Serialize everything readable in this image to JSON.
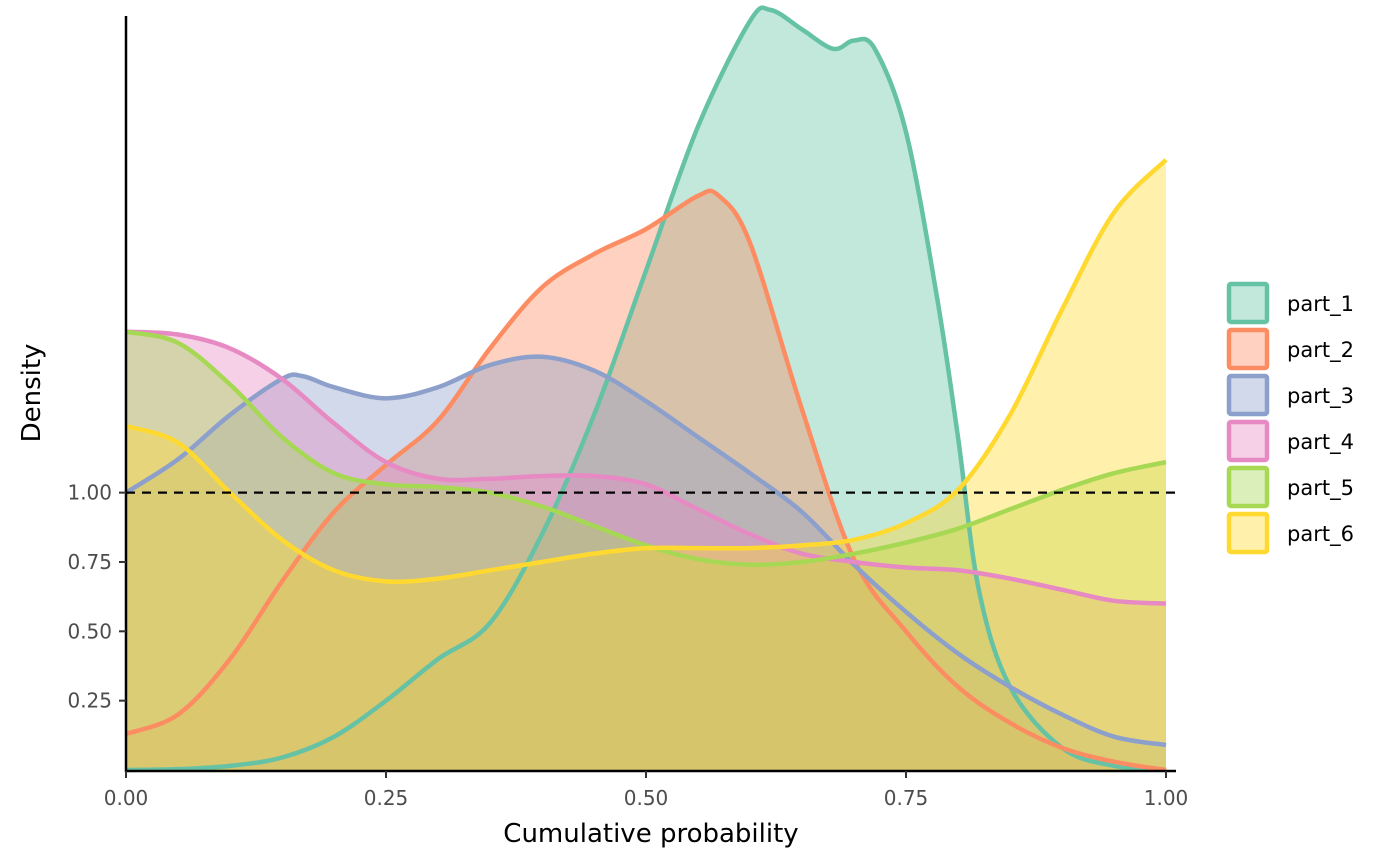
{
  "chart_data": {
    "type": "area",
    "subtype": "density",
    "title": "",
    "xlabel": "Cumulative probability",
    "ylabel": "Density",
    "xlim": [
      0,
      1
    ],
    "ylim": [
      0,
      2.74
    ],
    "x_ticks": [
      "0.00",
      "0.25",
      "0.50",
      "0.75",
      "1.00"
    ],
    "y_ticks": [
      "0.25",
      "0.50",
      "0.75",
      "1.00"
    ],
    "reference_line": {
      "y": 1.0,
      "style": "dashed",
      "color": "#000000"
    },
    "grid": false,
    "legend_position": "right",
    "fill_opacity": 0.4,
    "series": [
      {
        "name": "part_1",
        "color": "#66C2A5",
        "x": [
          0,
          0.05,
          0.1,
          0.15,
          0.2,
          0.25,
          0.3,
          0.35,
          0.4,
          0.45,
          0.5,
          0.55,
          0.6,
          0.62,
          0.65,
          0.68,
          0.7,
          0.72,
          0.75,
          0.78,
          0.8,
          0.82,
          0.85,
          0.9,
          0.95,
          1.0
        ],
        "y": [
          0.0,
          0.003,
          0.015,
          0.045,
          0.12,
          0.25,
          0.4,
          0.53,
          0.85,
          1.28,
          1.8,
          2.32,
          2.7,
          2.74,
          2.67,
          2.6,
          2.63,
          2.6,
          2.3,
          1.7,
          1.2,
          0.65,
          0.3,
          0.08,
          0.015,
          0.0
        ]
      },
      {
        "name": "part_2",
        "color": "#FC8D62",
        "x": [
          0,
          0.05,
          0.1,
          0.15,
          0.2,
          0.25,
          0.3,
          0.35,
          0.4,
          0.45,
          0.5,
          0.55,
          0.57,
          0.6,
          0.65,
          0.7,
          0.75,
          0.8,
          0.85,
          0.9,
          0.95,
          1.0
        ],
        "y": [
          0.13,
          0.2,
          0.4,
          0.68,
          0.93,
          1.1,
          1.26,
          1.52,
          1.74,
          1.86,
          1.95,
          2.07,
          2.07,
          1.9,
          1.3,
          0.76,
          0.5,
          0.3,
          0.17,
          0.08,
          0.03,
          0.0
        ]
      },
      {
        "name": "part_3",
        "color": "#8DA0CB",
        "x": [
          0,
          0.05,
          0.1,
          0.15,
          0.17,
          0.2,
          0.25,
          0.3,
          0.35,
          0.4,
          0.45,
          0.5,
          0.55,
          0.6,
          0.65,
          0.7,
          0.75,
          0.8,
          0.85,
          0.9,
          0.95,
          1.0
        ],
        "y": [
          1.0,
          1.12,
          1.28,
          1.41,
          1.42,
          1.38,
          1.34,
          1.38,
          1.46,
          1.49,
          1.44,
          1.33,
          1.2,
          1.07,
          0.93,
          0.74,
          0.57,
          0.42,
          0.3,
          0.2,
          0.12,
          0.09
        ]
      },
      {
        "name": "part_4",
        "color": "#E78AC3",
        "x": [
          0,
          0.05,
          0.1,
          0.15,
          0.2,
          0.25,
          0.3,
          0.35,
          0.4,
          0.45,
          0.5,
          0.55,
          0.6,
          0.65,
          0.7,
          0.75,
          0.8,
          0.85,
          0.9,
          0.95,
          1.0
        ],
        "y": [
          1.58,
          1.57,
          1.52,
          1.41,
          1.25,
          1.11,
          1.05,
          1.05,
          1.06,
          1.06,
          1.03,
          0.94,
          0.85,
          0.78,
          0.75,
          0.73,
          0.72,
          0.69,
          0.65,
          0.61,
          0.6
        ]
      },
      {
        "name": "part_5",
        "color": "#A6D854",
        "x": [
          0,
          0.05,
          0.1,
          0.15,
          0.2,
          0.25,
          0.3,
          0.35,
          0.4,
          0.45,
          0.5,
          0.55,
          0.6,
          0.65,
          0.7,
          0.75,
          0.8,
          0.85,
          0.9,
          0.95,
          1.0
        ],
        "y": [
          1.58,
          1.54,
          1.39,
          1.2,
          1.07,
          1.03,
          1.02,
          1.0,
          0.95,
          0.88,
          0.81,
          0.76,
          0.74,
          0.75,
          0.78,
          0.82,
          0.87,
          0.94,
          1.01,
          1.07,
          1.11
        ]
      },
      {
        "name": "part_6",
        "color": "#FFD92F",
        "x": [
          0,
          0.05,
          0.1,
          0.15,
          0.2,
          0.25,
          0.3,
          0.35,
          0.4,
          0.45,
          0.5,
          0.55,
          0.6,
          0.65,
          0.7,
          0.75,
          0.8,
          0.85,
          0.9,
          0.95,
          1.0
        ],
        "y": [
          1.24,
          1.18,
          1.0,
          0.83,
          0.72,
          0.68,
          0.69,
          0.72,
          0.75,
          0.78,
          0.8,
          0.8,
          0.8,
          0.81,
          0.83,
          0.89,
          1.01,
          1.28,
          1.66,
          2.01,
          2.2
        ]
      }
    ]
  }
}
